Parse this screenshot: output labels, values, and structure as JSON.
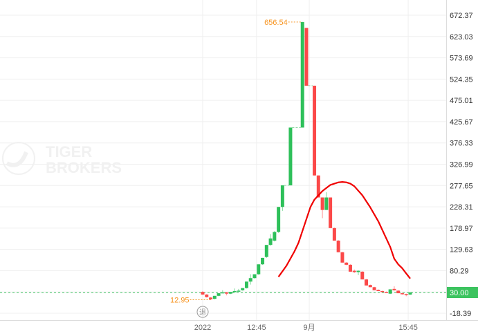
{
  "chart_data": {
    "type": "candlestick",
    "title": "",
    "watermark": "TIGER BROKERS",
    "y_ticks": [
      "672.37",
      "623.03",
      "573.69",
      "524.35",
      "475.01",
      "425.67",
      "376.33",
      "326.99",
      "277.65",
      "228.31",
      "178.97",
      "129.63",
      "80.29",
      "30.00",
      "-18.39"
    ],
    "ylim": [
      -18.39,
      672.37
    ],
    "x_ticks": [
      {
        "label": "2022",
        "slot": 0
      },
      {
        "label": "12:45",
        "slot": 13.5
      },
      {
        "label": "9月",
        "slot": 26.7
      },
      {
        "label": "15:45",
        "slot": 51.5
      }
    ],
    "current_price": {
      "label": "30.00",
      "value": 30.0,
      "color": "#3cc35f"
    },
    "annotations": {
      "high": {
        "label": "656.54",
        "value": 656.54,
        "slot": 25
      },
      "low": {
        "label": "12.95",
        "value": 12.95,
        "slot": 2
      }
    },
    "badge": "退",
    "colors": {
      "up": "#2ec05a",
      "down": "#fb4949",
      "ma": "#f00000",
      "annotation": "#f7931e",
      "grid": "#efefef"
    },
    "grid": true,
    "candles": [
      {
        "o": 31,
        "h": 33,
        "l": 24,
        "c": 25
      },
      {
        "o": 25,
        "h": 26,
        "l": 18,
        "c": 19
      },
      {
        "o": 18,
        "h": 19,
        "l": 12.95,
        "c": 14
      },
      {
        "o": 15,
        "h": 22,
        "l": 14,
        "c": 22
      },
      {
        "o": 22,
        "h": 28,
        "l": 21,
        "c": 28
      },
      {
        "o": 29,
        "h": 35,
        "l": 28,
        "c": 30
      },
      {
        "o": 30,
        "h": 31,
        "l": 23,
        "c": 27
      },
      {
        "o": 27,
        "h": 31,
        "l": 26,
        "c": 31
      },
      {
        "o": 32,
        "h": 39,
        "l": 31,
        "c": 33
      },
      {
        "o": 33,
        "h": 38,
        "l": 32,
        "c": 34
      },
      {
        "o": 35,
        "h": 40,
        "l": 34,
        "c": 40
      },
      {
        "o": 40,
        "h": 55,
        "l": 39,
        "c": 55
      },
      {
        "o": 55,
        "h": 72,
        "l": 48,
        "c": 63
      },
      {
        "o": 63,
        "h": 72,
        "l": 62,
        "c": 72
      },
      {
        "o": 72,
        "h": 95,
        "l": 71,
        "c": 95
      },
      {
        "o": 95,
        "h": 110,
        "l": 94,
        "c": 110
      },
      {
        "o": 112,
        "h": 140,
        "l": 110,
        "c": 140
      },
      {
        "o": 140,
        "h": 165,
        "l": 138,
        "c": 155
      },
      {
        "o": 150,
        "h": 172,
        "l": 148,
        "c": 170
      },
      {
        "o": 170,
        "h": 228,
        "l": 168,
        "c": 228
      },
      {
        "o": 228,
        "h": 278,
        "l": 219,
        "c": 278
      },
      null,
      {
        "o": 278,
        "h": 412,
        "l": 278,
        "c": 412
      },
      null,
      null,
      {
        "o": 412,
        "h": 656.54,
        "l": 412,
        "c": 656.54
      },
      {
        "o": 643,
        "h": 643,
        "l": 509,
        "c": 509
      },
      null,
      {
        "o": 509,
        "h": 509,
        "l": 301,
        "c": 301
      },
      {
        "o": 301,
        "h": 301,
        "l": 250,
        "c": 250
      },
      {
        "o": 250,
        "h": 250,
        "l": 202,
        "c": 221
      },
      {
        "o": 221,
        "h": 262,
        "l": 221,
        "c": 250
      },
      {
        "o": 250,
        "h": 250,
        "l": 179,
        "c": 179
      },
      {
        "o": 179,
        "h": 180,
        "l": 150,
        "c": 150
      },
      {
        "o": 150,
        "h": 151,
        "l": 123,
        "c": 123
      },
      {
        "o": 123,
        "h": 124,
        "l": 99,
        "c": 99
      },
      {
        "o": 99,
        "h": 100,
        "l": 93,
        "c": 94
      },
      {
        "o": 94,
        "h": 95,
        "l": 78,
        "c": 78
      },
      {
        "o": 80,
        "h": 83,
        "l": 75,
        "c": 77
      },
      {
        "o": 77,
        "h": 81,
        "l": 70,
        "c": 80
      },
      {
        "o": 78,
        "h": 79,
        "l": 60,
        "c": 60
      },
      {
        "o": 60,
        "h": 61,
        "l": 46,
        "c": 46
      },
      {
        "o": 47,
        "h": 48,
        "l": 42,
        "c": 42
      },
      {
        "o": 42,
        "h": 43,
        "l": 35,
        "c": 35
      },
      {
        "o": 36,
        "h": 37,
        "l": 33,
        "c": 33
      },
      {
        "o": 33,
        "h": 34,
        "l": 31,
        "c": 31
      },
      {
        "o": 31,
        "h": 32,
        "l": 29,
        "c": 30
      },
      {
        "o": 27,
        "h": 37,
        "l": 26,
        "c": 37
      },
      {
        "o": 38,
        "h": 44,
        "l": 34,
        "c": 35
      },
      {
        "o": 34,
        "h": 35,
        "l": 28,
        "c": 28
      },
      {
        "o": 28,
        "h": 29,
        "l": 25,
        "c": 26
      },
      {
        "o": 26,
        "h": 27,
        "l": 21,
        "c": 24
      },
      {
        "o": 25,
        "h": 30,
        "l": 24,
        "c": 30
      }
    ],
    "ma": [
      {
        "slot": 19,
        "v": 66
      },
      {
        "slot": 21,
        "v": 92
      },
      {
        "slot": 23,
        "v": 125
      },
      {
        "slot": 24,
        "v": 145
      },
      {
        "slot": 26,
        "v": 200
      },
      {
        "slot": 27,
        "v": 228
      },
      {
        "slot": 28,
        "v": 245
      },
      {
        "slot": 30,
        "v": 265
      },
      {
        "slot": 32,
        "v": 279
      },
      {
        "slot": 34,
        "v": 285
      },
      {
        "slot": 35,
        "v": 286
      },
      {
        "slot": 36,
        "v": 285
      },
      {
        "slot": 37,
        "v": 282
      },
      {
        "slot": 38,
        "v": 276
      },
      {
        "slot": 40,
        "v": 255
      },
      {
        "slot": 42,
        "v": 227
      },
      {
        "slot": 44,
        "v": 195
      },
      {
        "slot": 46,
        "v": 155
      },
      {
        "slot": 47,
        "v": 135
      },
      {
        "slot": 48,
        "v": 108
      },
      {
        "slot": 49,
        "v": 95
      },
      {
        "slot": 50,
        "v": 86
      },
      {
        "slot": 51,
        "v": 74
      },
      {
        "slot": 52,
        "v": 62
      }
    ]
  }
}
